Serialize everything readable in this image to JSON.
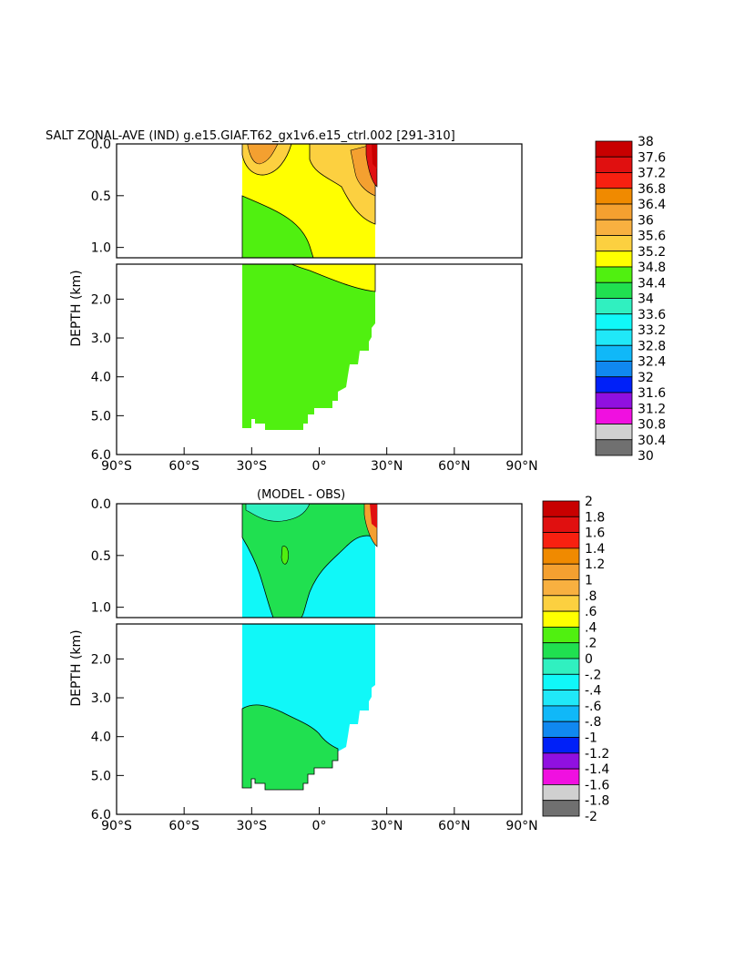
{
  "chart_data": [
    {
      "type": "heatmap",
      "title": "SALT ZONAL-AVE (IND) g.e15.GIAF.T62_gx1v6.e15_ctrl.002 [291-310]",
      "ylabel": "DEPTH (km)",
      "xticks": [
        "90°S",
        "60°S",
        "30°S",
        "0°",
        "30°N",
        "60°N",
        "90°N"
      ],
      "yticks_upper": [
        "0.0",
        "0.5",
        "1.0"
      ],
      "yticks_lower": [
        "2.0",
        "3.0",
        "4.0",
        "5.0",
        "6.0"
      ],
      "xlim": [
        -90,
        90
      ],
      "ylim_upper": [
        0,
        1.1
      ],
      "ylim_lower": [
        1.1,
        6.0
      ],
      "colorbar": {
        "labels": [
          "38",
          "37.6",
          "37.2",
          "36.8",
          "36.4",
          "36",
          "35.6",
          "35.2",
          "34.8",
          "34.4",
          "34",
          "33.6",
          "33.2",
          "32.8",
          "32.4",
          "32",
          "31.6",
          "31.2",
          "30.8",
          "30.4",
          "30"
        ],
        "colors": [
          "#c80000",
          "#e01010",
          "#f82010",
          "#f08a00",
          "#f4a030",
          "#f8b040",
          "#fcd040",
          "#ffff00",
          "#50f010",
          "#20e050",
          "#30f0c0",
          "#10f8f8",
          "#20e8f8",
          "#10b8f8",
          "#1088f0",
          "#0020f8",
          "#9010e0",
          "#f010e0",
          "#d0d0d0",
          "#707070"
        ]
      },
      "fields": {
        "surface_band_color": "#ffff00",
        "deep_color": "#50f010",
        "orange_patch_color": "#fcd040",
        "hotspot_color": "#e01010"
      }
    },
    {
      "type": "heatmap",
      "title": "(MODEL - OBS)",
      "ylabel": "DEPTH (km)",
      "xticks": [
        "90°S",
        "60°S",
        "30°S",
        "0°",
        "30°N",
        "60°N",
        "90°N"
      ],
      "yticks_upper": [
        "0.0",
        "0.5",
        "1.0"
      ],
      "yticks_lower": [
        "2.0",
        "3.0",
        "4.0",
        "5.0",
        "6.0"
      ],
      "xlim": [
        -90,
        90
      ],
      "ylim_upper": [
        0,
        1.1
      ],
      "ylim_lower": [
        1.1,
        6.0
      ],
      "colorbar": {
        "labels": [
          "2",
          "1.8",
          "1.6",
          "1.4",
          "1.2",
          "1",
          ".8",
          ".6",
          ".4",
          ".2",
          "0",
          "-.2",
          "-.4",
          "-.6",
          "-.8",
          "-1",
          "-1.2",
          "-1.4",
          "-1.6",
          "-1.8",
          "-2"
        ],
        "colors": [
          "#c80000",
          "#e01010",
          "#f82010",
          "#f08a00",
          "#f4a030",
          "#f8b040",
          "#fcd040",
          "#ffff00",
          "#50f010",
          "#20e050",
          "#30f0c0",
          "#10f8f8",
          "#20e8f8",
          "#10b8f8",
          "#1088f0",
          "#0020f8",
          "#9010e0",
          "#f010e0",
          "#d0d0d0",
          "#707070"
        ]
      },
      "fields": {
        "background_color": "#10f8f8",
        "positive_color": "#20e050",
        "hotspot_color": "#f4a030"
      }
    }
  ]
}
